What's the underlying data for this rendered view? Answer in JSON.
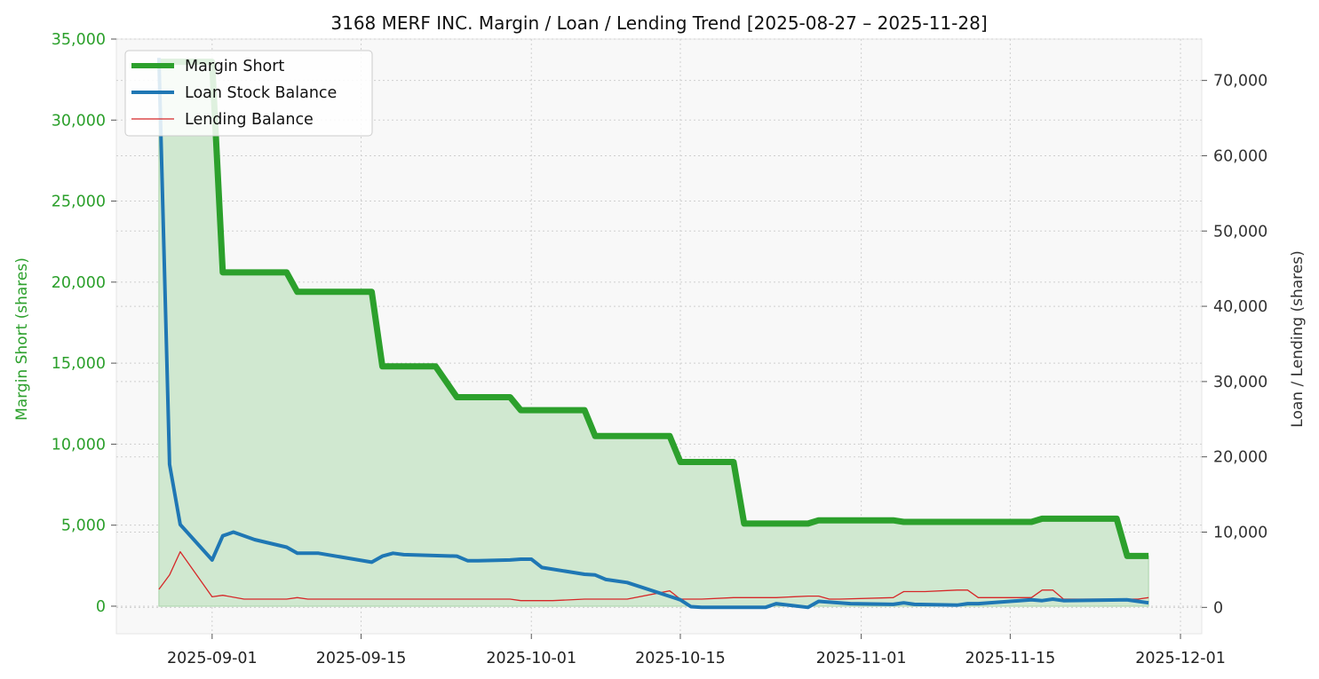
{
  "chart_data": {
    "type": "line",
    "title": "3168 MERF INC. Margin / Loan / Lending Trend [2025-08-27 – 2025-11-28]",
    "y_left_label": "Margin Short (shares)",
    "y_right_label": "Loan / Lending (shares)",
    "x_range": [
      "2025-08-23",
      "2025-12-03"
    ],
    "x_ticks": [
      "2025-09-01",
      "2025-09-15",
      "2025-10-01",
      "2025-10-15",
      "2025-11-01",
      "2025-11-15",
      "2025-12-01"
    ],
    "y_left_range": [
      -1700,
      35000
    ],
    "y_left_ticks": [
      0,
      5000,
      10000,
      15000,
      20000,
      25000,
      30000,
      35000
    ],
    "y_left_tick_labels": [
      "0",
      "5,000",
      "10,000",
      "15,000",
      "20,000",
      "25,000",
      "30,000",
      "35,000"
    ],
    "y_right_range": [
      -3500,
      75500
    ],
    "y_right_ticks": [
      0,
      10000,
      20000,
      30000,
      40000,
      50000,
      60000,
      70000
    ],
    "y_right_tick_labels": [
      "0",
      "10,000",
      "20,000",
      "30,000",
      "40,000",
      "50,000",
      "60,000",
      "70,000"
    ],
    "grid": true,
    "legend_position": "top-left",
    "colors": {
      "margin": "#2ca02c",
      "loan": "#1f77b4",
      "lending": "#d62728",
      "fill": "#d0e8d0",
      "plot_bg": "#f8f8f8",
      "left_axis_text": "#2ca02c",
      "right_axis_text": "#333333"
    },
    "series": [
      {
        "name": "Margin Short",
        "axis": "left",
        "points": [
          [
            "2025-08-27",
            33600
          ],
          [
            "2025-08-28",
            33600
          ],
          [
            "2025-08-29",
            33600
          ],
          [
            "2025-09-01",
            33600
          ],
          [
            "2025-09-02",
            20600
          ],
          [
            "2025-09-03",
            20600
          ],
          [
            "2025-09-04",
            20600
          ],
          [
            "2025-09-05",
            20600
          ],
          [
            "2025-09-08",
            20600
          ],
          [
            "2025-09-09",
            19400
          ],
          [
            "2025-09-10",
            19400
          ],
          [
            "2025-09-11",
            19400
          ],
          [
            "2025-09-12",
            19400
          ],
          [
            "2025-09-16",
            19400
          ],
          [
            "2025-09-17",
            14800
          ],
          [
            "2025-09-18",
            14800
          ],
          [
            "2025-09-19",
            14800
          ],
          [
            "2025-09-22",
            14800
          ],
          [
            "2025-09-24",
            12900
          ],
          [
            "2025-09-25",
            12900
          ],
          [
            "2025-09-26",
            12900
          ],
          [
            "2025-09-29",
            12900
          ],
          [
            "2025-09-30",
            12100
          ],
          [
            "2025-10-01",
            12100
          ],
          [
            "2025-10-02",
            12100
          ],
          [
            "2025-10-03",
            12100
          ],
          [
            "2025-10-06",
            12100
          ],
          [
            "2025-10-07",
            10500
          ],
          [
            "2025-10-08",
            10500
          ],
          [
            "2025-10-09",
            10500
          ],
          [
            "2025-10-10",
            10500
          ],
          [
            "2025-10-14",
            10500
          ],
          [
            "2025-10-15",
            8900
          ],
          [
            "2025-10-16",
            8900
          ],
          [
            "2025-10-17",
            8900
          ],
          [
            "2025-10-20",
            8900
          ],
          [
            "2025-10-21",
            5100
          ],
          [
            "2025-10-22",
            5100
          ],
          [
            "2025-10-23",
            5100
          ],
          [
            "2025-10-24",
            5100
          ],
          [
            "2025-10-27",
            5100
          ],
          [
            "2025-10-28",
            5300
          ],
          [
            "2025-10-29",
            5300
          ],
          [
            "2025-10-30",
            5300
          ],
          [
            "2025-10-31",
            5300
          ],
          [
            "2025-11-04",
            5300
          ],
          [
            "2025-11-05",
            5200
          ],
          [
            "2025-11-06",
            5200
          ],
          [
            "2025-11-07",
            5200
          ],
          [
            "2025-11-10",
            5200
          ],
          [
            "2025-11-11",
            5200
          ],
          [
            "2025-11-12",
            5200
          ],
          [
            "2025-11-13",
            5200
          ],
          [
            "2025-11-14",
            5200
          ],
          [
            "2025-11-17",
            5200
          ],
          [
            "2025-11-18",
            5400
          ],
          [
            "2025-11-19",
            5400
          ],
          [
            "2025-11-20",
            5400
          ],
          [
            "2025-11-21",
            5400
          ],
          [
            "2025-11-25",
            5400
          ],
          [
            "2025-11-26",
            3100
          ],
          [
            "2025-11-27",
            3100
          ],
          [
            "2025-11-28",
            3100
          ]
        ]
      },
      {
        "name": "Loan Stock Balance",
        "axis": "right",
        "points": [
          [
            "2025-08-27",
            73000
          ],
          [
            "2025-08-28",
            19000
          ],
          [
            "2025-08-29",
            11000
          ],
          [
            "2025-09-01",
            6300
          ],
          [
            "2025-09-02",
            9500
          ],
          [
            "2025-09-03",
            10000
          ],
          [
            "2025-09-05",
            9000
          ],
          [
            "2025-09-08",
            8000
          ],
          [
            "2025-09-09",
            7200
          ],
          [
            "2025-09-10",
            7200
          ],
          [
            "2025-09-11",
            7200
          ],
          [
            "2025-09-16",
            6000
          ],
          [
            "2025-09-17",
            6800
          ],
          [
            "2025-09-18",
            7200
          ],
          [
            "2025-09-19",
            7000
          ],
          [
            "2025-09-24",
            6800
          ],
          [
            "2025-09-25",
            6200
          ],
          [
            "2025-09-26",
            6200
          ],
          [
            "2025-09-29",
            6300
          ],
          [
            "2025-09-30",
            6400
          ],
          [
            "2025-10-01",
            6400
          ],
          [
            "2025-10-02",
            5300
          ],
          [
            "2025-10-06",
            4400
          ],
          [
            "2025-10-07",
            4300
          ],
          [
            "2025-10-08",
            3700
          ],
          [
            "2025-10-10",
            3300
          ],
          [
            "2025-10-15",
            1000
          ],
          [
            "2025-10-16",
            100
          ],
          [
            "2025-10-17",
            0
          ],
          [
            "2025-10-23",
            0
          ],
          [
            "2025-10-24",
            500
          ],
          [
            "2025-10-27",
            0
          ],
          [
            "2025-10-28",
            800
          ],
          [
            "2025-10-31",
            500
          ],
          [
            "2025-11-04",
            400
          ],
          [
            "2025-11-05",
            600
          ],
          [
            "2025-11-06",
            400
          ],
          [
            "2025-11-10",
            300
          ],
          [
            "2025-11-11",
            500
          ],
          [
            "2025-11-12",
            500
          ],
          [
            "2025-11-17",
            1000
          ],
          [
            "2025-11-18",
            900
          ],
          [
            "2025-11-19",
            1100
          ],
          [
            "2025-11-20",
            900
          ],
          [
            "2025-11-26",
            1000
          ],
          [
            "2025-11-27",
            800
          ],
          [
            "2025-11-28",
            600
          ]
        ]
      },
      {
        "name": "Lending Balance",
        "axis": "right",
        "points": [
          [
            "2025-08-27",
            2400
          ],
          [
            "2025-08-28",
            4300
          ],
          [
            "2025-08-29",
            7400
          ],
          [
            "2025-09-01",
            1400
          ],
          [
            "2025-09-02",
            1600
          ],
          [
            "2025-09-04",
            1100
          ],
          [
            "2025-09-08",
            1100
          ],
          [
            "2025-09-09",
            1300
          ],
          [
            "2025-09-10",
            1100
          ],
          [
            "2025-09-15",
            1100
          ],
          [
            "2025-09-29",
            1100
          ],
          [
            "2025-09-30",
            900
          ],
          [
            "2025-10-03",
            900
          ],
          [
            "2025-10-06",
            1100
          ],
          [
            "2025-10-10",
            1100
          ],
          [
            "2025-10-14",
            2200
          ],
          [
            "2025-10-15",
            1100
          ],
          [
            "2025-10-17",
            1100
          ],
          [
            "2025-10-20",
            1300
          ],
          [
            "2025-10-24",
            1300
          ],
          [
            "2025-10-27",
            1500
          ],
          [
            "2025-10-28",
            1500
          ],
          [
            "2025-10-29",
            1100
          ],
          [
            "2025-10-30",
            1100
          ],
          [
            "2025-11-04",
            1300
          ],
          [
            "2025-11-05",
            2100
          ],
          [
            "2025-11-07",
            2100
          ],
          [
            "2025-11-10",
            2300
          ],
          [
            "2025-11-11",
            2300
          ],
          [
            "2025-11-12",
            1300
          ],
          [
            "2025-11-17",
            1300
          ],
          [
            "2025-11-18",
            2300
          ],
          [
            "2025-11-19",
            2300
          ],
          [
            "2025-11-20",
            1100
          ],
          [
            "2025-11-27",
            1100
          ],
          [
            "2025-11-28",
            1300
          ]
        ]
      }
    ]
  }
}
